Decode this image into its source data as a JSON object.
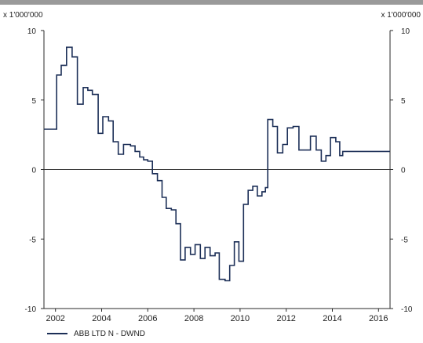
{
  "units": {
    "left": "x 1'000'000",
    "right": "x 1'000'000"
  },
  "legend": {
    "label": "ABB LTD N - DWND"
  },
  "chart_data": {
    "type": "line",
    "step": true,
    "title": "",
    "xlabel": "",
    "ylabel": "",
    "ylim": [
      -10,
      10
    ],
    "xlim": [
      2001.5,
      2016.5
    ],
    "grid": false,
    "legend_position": "bottom-left",
    "line_color": "#1c2f57",
    "yticks": [
      -10,
      -5,
      0,
      5,
      10
    ],
    "xticks": [
      2002,
      2004,
      2006,
      2008,
      2010,
      2012,
      2014,
      2016
    ],
    "series": [
      {
        "name": "ABB LTD N - DWND",
        "points": [
          [
            2001.5,
            2.9
          ],
          [
            2002.05,
            6.8
          ],
          [
            2002.25,
            7.5
          ],
          [
            2002.48,
            8.8
          ],
          [
            2002.72,
            8.1
          ],
          [
            2002.95,
            4.7
          ],
          [
            2003.2,
            5.9
          ],
          [
            2003.4,
            5.7
          ],
          [
            2003.6,
            5.4
          ],
          [
            2003.85,
            2.6
          ],
          [
            2004.05,
            3.8
          ],
          [
            2004.3,
            3.5
          ],
          [
            2004.5,
            2.0
          ],
          [
            2004.72,
            1.1
          ],
          [
            2004.95,
            1.8
          ],
          [
            2005.25,
            1.7
          ],
          [
            2005.45,
            1.3
          ],
          [
            2005.65,
            0.9
          ],
          [
            2005.82,
            0.7
          ],
          [
            2006.0,
            0.6
          ],
          [
            2006.2,
            -0.3
          ],
          [
            2006.42,
            -0.8
          ],
          [
            2006.62,
            -2.0
          ],
          [
            2006.8,
            -2.8
          ],
          [
            2007.02,
            -2.9
          ],
          [
            2007.22,
            -3.9
          ],
          [
            2007.42,
            -6.5
          ],
          [
            2007.62,
            -5.6
          ],
          [
            2007.85,
            -6.1
          ],
          [
            2008.05,
            -5.4
          ],
          [
            2008.28,
            -6.4
          ],
          [
            2008.48,
            -5.6
          ],
          [
            2008.7,
            -6.2
          ],
          [
            2008.92,
            -6.0
          ],
          [
            2009.1,
            -7.9
          ],
          [
            2009.35,
            -8.0
          ],
          [
            2009.55,
            -6.9
          ],
          [
            2009.75,
            -5.2
          ],
          [
            2009.95,
            -6.6
          ],
          [
            2010.15,
            -2.5
          ],
          [
            2010.35,
            -1.5
          ],
          [
            2010.55,
            -1.2
          ],
          [
            2010.75,
            -1.9
          ],
          [
            2010.95,
            -1.6
          ],
          [
            2011.1,
            -1.3
          ],
          [
            2011.2,
            3.6
          ],
          [
            2011.42,
            3.1
          ],
          [
            2011.62,
            1.2
          ],
          [
            2011.85,
            1.8
          ],
          [
            2012.05,
            3.0
          ],
          [
            2012.3,
            3.1
          ],
          [
            2012.55,
            1.4
          ],
          [
            2013.05,
            2.4
          ],
          [
            2013.3,
            1.4
          ],
          [
            2013.52,
            0.6
          ],
          [
            2013.72,
            1.0
          ],
          [
            2013.92,
            2.3
          ],
          [
            2014.15,
            2.0
          ],
          [
            2014.32,
            1.0
          ],
          [
            2014.45,
            1.3
          ],
          [
            2016.5,
            1.3
          ]
        ]
      }
    ]
  }
}
